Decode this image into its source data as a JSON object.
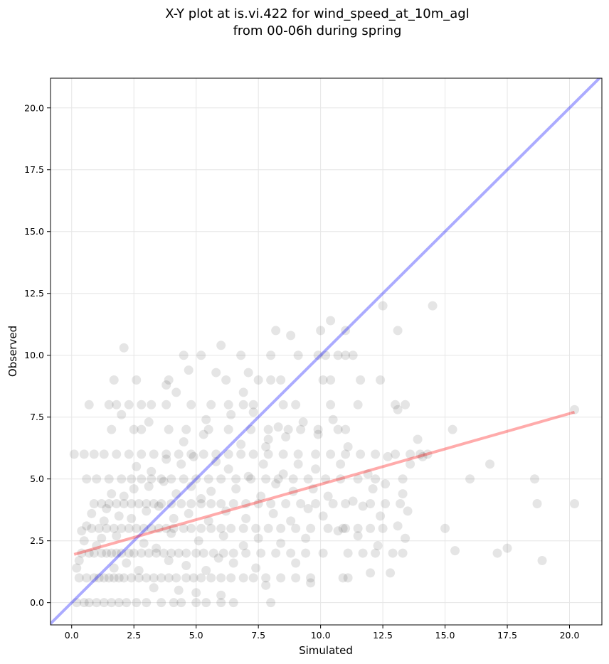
{
  "chart_data": {
    "type": "scatter",
    "title": [
      "X-Y plot at is.vi.422 for wind_speed_at_10m_agl",
      "from 00-06h during spring"
    ],
    "xlabel": "Simulated",
    "ylabel": "Observed",
    "xlim": [
      -0.85,
      21.3
    ],
    "ylim": [
      -0.9,
      21.2
    ],
    "xticks": [
      0.0,
      2.5,
      5.0,
      7.5,
      10.0,
      12.5,
      15.0,
      17.5,
      20.0
    ],
    "xtick_labels": [
      "0.0",
      "2.5",
      "5.0",
      "7.5",
      "10.0",
      "12.5",
      "15.0",
      "17.5",
      "20.0"
    ],
    "yticks": [
      0.0,
      2.5,
      5.0,
      7.5,
      10.0,
      12.5,
      15.0,
      17.5,
      20.0
    ],
    "ytick_labels": [
      "0.0",
      "2.5",
      "5.0",
      "7.5",
      "10.0",
      "12.5",
      "15.0",
      "17.5",
      "20.0"
    ],
    "grid": true,
    "colors": {
      "points": "#000000",
      "identity_line": "#0000ff",
      "fit_line": "#ff0000",
      "grid": "#e6e6e6"
    },
    "identity_line": {
      "from": [
        -0.85,
        -0.85
      ],
      "to": [
        21.3,
        21.3
      ]
    },
    "fit_line": {
      "from": [
        0.1,
        1.95
      ],
      "to": [
        20.2,
        7.7
      ]
    },
    "points": [
      [
        0.2,
        0
      ],
      [
        0.5,
        0
      ],
      [
        0.7,
        0
      ],
      [
        1.0,
        0
      ],
      [
        1.3,
        0
      ],
      [
        1.6,
        0
      ],
      [
        1.9,
        0
      ],
      [
        2.2,
        0
      ],
      [
        2.6,
        0
      ],
      [
        3.0,
        0
      ],
      [
        3.6,
        0
      ],
      [
        4.1,
        0
      ],
      [
        4.4,
        0
      ],
      [
        5.0,
        0
      ],
      [
        5.4,
        0
      ],
      [
        6.0,
        0
      ],
      [
        6.5,
        0
      ],
      [
        8.0,
        0
      ],
      [
        0.3,
        1
      ],
      [
        0.6,
        1
      ],
      [
        0.9,
        1
      ],
      [
        1.1,
        1
      ],
      [
        1.3,
        1
      ],
      [
        1.5,
        1
      ],
      [
        1.7,
        1
      ],
      [
        1.9,
        1
      ],
      [
        2.1,
        1
      ],
      [
        2.4,
        1
      ],
      [
        2.7,
        1
      ],
      [
        3.0,
        1
      ],
      [
        3.3,
        1
      ],
      [
        3.6,
        1
      ],
      [
        3.9,
        1
      ],
      [
        4.2,
        1
      ],
      [
        4.6,
        1
      ],
      [
        4.9,
        1
      ],
      [
        5.2,
        1
      ],
      [
        5.6,
        1
      ],
      [
        6.0,
        1
      ],
      [
        6.4,
        1
      ],
      [
        6.9,
        1
      ],
      [
        7.3,
        1
      ],
      [
        7.8,
        1
      ],
      [
        8.4,
        1
      ],
      [
        9.0,
        1
      ],
      [
        9.6,
        1
      ],
      [
        10.9,
        1
      ],
      [
        11.1,
        1
      ],
      [
        0.4,
        2
      ],
      [
        0.7,
        2
      ],
      [
        0.9,
        2
      ],
      [
        1.2,
        2
      ],
      [
        1.4,
        2
      ],
      [
        1.6,
        2
      ],
      [
        1.8,
        2
      ],
      [
        2.0,
        2
      ],
      [
        2.3,
        2
      ],
      [
        2.5,
        2
      ],
      [
        2.8,
        2
      ],
      [
        3.1,
        2
      ],
      [
        3.4,
        2
      ],
      [
        3.7,
        2
      ],
      [
        4.0,
        2
      ],
      [
        4.3,
        2
      ],
      [
        4.6,
        2
      ],
      [
        5.0,
        2
      ],
      [
        5.3,
        2
      ],
      [
        5.7,
        2
      ],
      [
        6.1,
        2
      ],
      [
        6.5,
        2
      ],
      [
        7.0,
        2
      ],
      [
        7.6,
        2
      ],
      [
        8.2,
        2
      ],
      [
        8.8,
        2
      ],
      [
        9.4,
        2
      ],
      [
        10.1,
        2
      ],
      [
        11.1,
        2
      ],
      [
        11.7,
        2
      ],
      [
        12.2,
        2
      ],
      [
        12.9,
        2
      ],
      [
        13.3,
        2
      ],
      [
        17.1,
        2
      ],
      [
        0.8,
        3
      ],
      [
        1.1,
        3
      ],
      [
        1.4,
        3
      ],
      [
        1.7,
        3
      ],
      [
        2.0,
        3
      ],
      [
        2.3,
        3
      ],
      [
        2.6,
        3
      ],
      [
        2.9,
        3
      ],
      [
        3.2,
        3
      ],
      [
        3.5,
        3
      ],
      [
        3.8,
        3
      ],
      [
        4.1,
        3
      ],
      [
        4.5,
        3
      ],
      [
        4.8,
        3
      ],
      [
        5.2,
        3
      ],
      [
        5.6,
        3
      ],
      [
        6.0,
        3
      ],
      [
        6.4,
        3
      ],
      [
        6.9,
        3
      ],
      [
        7.4,
        3
      ],
      [
        7.9,
        3
      ],
      [
        8.4,
        3
      ],
      [
        9.0,
        3
      ],
      [
        9.6,
        3
      ],
      [
        10.3,
        3
      ],
      [
        11.0,
        3
      ],
      [
        11.5,
        3
      ],
      [
        12.0,
        3
      ],
      [
        12.5,
        3
      ],
      [
        15.0,
        3
      ],
      [
        0.9,
        4
      ],
      [
        1.2,
        4
      ],
      [
        1.5,
        4
      ],
      [
        1.8,
        4
      ],
      [
        2.1,
        4
      ],
      [
        2.4,
        4
      ],
      [
        2.7,
        4
      ],
      [
        3.0,
        4
      ],
      [
        3.3,
        4
      ],
      [
        3.6,
        4
      ],
      [
        4.0,
        4
      ],
      [
        4.4,
        4
      ],
      [
        4.8,
        4
      ],
      [
        5.2,
        4
      ],
      [
        5.6,
        4
      ],
      [
        6.0,
        4
      ],
      [
        6.5,
        4
      ],
      [
        7.0,
        4
      ],
      [
        7.5,
        4
      ],
      [
        8.0,
        4
      ],
      [
        8.6,
        4
      ],
      [
        9.2,
        4
      ],
      [
        9.8,
        4
      ],
      [
        10.5,
        4
      ],
      [
        11.0,
        4
      ],
      [
        12.0,
        4
      ],
      [
        12.6,
        4
      ],
      [
        13.2,
        4
      ],
      [
        18.7,
        4
      ],
      [
        20.2,
        4
      ],
      [
        0.6,
        5
      ],
      [
        1.0,
        5
      ],
      [
        1.5,
        5
      ],
      [
        2.0,
        5
      ],
      [
        2.4,
        5
      ],
      [
        2.8,
        5
      ],
      [
        3.2,
        5
      ],
      [
        3.6,
        5
      ],
      [
        4.0,
        5
      ],
      [
        4.5,
        5
      ],
      [
        5.0,
        5
      ],
      [
        5.5,
        5
      ],
      [
        6.0,
        5
      ],
      [
        6.6,
        5
      ],
      [
        7.2,
        5
      ],
      [
        7.8,
        5
      ],
      [
        8.3,
        5
      ],
      [
        8.9,
        5
      ],
      [
        9.5,
        5
      ],
      [
        10.2,
        5
      ],
      [
        10.8,
        5
      ],
      [
        11.5,
        5
      ],
      [
        12.2,
        5
      ],
      [
        13.3,
        5
      ],
      [
        16.0,
        5
      ],
      [
        18.6,
        5
      ],
      [
        0.1,
        6
      ],
      [
        0.5,
        6
      ],
      [
        0.9,
        6
      ],
      [
        1.3,
        6
      ],
      [
        1.8,
        6
      ],
      [
        2.3,
        6
      ],
      [
        2.8,
        6
      ],
      [
        3.3,
        6
      ],
      [
        3.8,
        6
      ],
      [
        4.3,
        6
      ],
      [
        4.8,
        6
      ],
      [
        5.3,
        6
      ],
      [
        5.8,
        6
      ],
      [
        6.3,
        6
      ],
      [
        6.8,
        6
      ],
      [
        7.3,
        6
      ],
      [
        7.9,
        6
      ],
      [
        8.5,
        6
      ],
      [
        9.1,
        6
      ],
      [
        9.8,
        6
      ],
      [
        10.4,
        6
      ],
      [
        11.0,
        6
      ],
      [
        11.6,
        6
      ],
      [
        12.2,
        6
      ],
      [
        13.0,
        6
      ],
      [
        13.6,
        6
      ],
      [
        14.3,
        6
      ],
      [
        1.6,
        7
      ],
      [
        2.5,
        7
      ],
      [
        2.8,
        7
      ],
      [
        3.9,
        7
      ],
      [
        4.6,
        7
      ],
      [
        5.5,
        7
      ],
      [
        6.3,
        7
      ],
      [
        7.2,
        7
      ],
      [
        7.9,
        7
      ],
      [
        8.7,
        7
      ],
      [
        9.2,
        7
      ],
      [
        9.9,
        7
      ],
      [
        10.7,
        7
      ],
      [
        11.0,
        7
      ],
      [
        15.3,
        7
      ],
      [
        0.7,
        8
      ],
      [
        1.5,
        8
      ],
      [
        1.8,
        8
      ],
      [
        2.3,
        8
      ],
      [
        2.8,
        8
      ],
      [
        3.2,
        8
      ],
      [
        3.8,
        8
      ],
      [
        4.8,
        8
      ],
      [
        5.6,
        8
      ],
      [
        6.3,
        8
      ],
      [
        6.9,
        8
      ],
      [
        7.3,
        8
      ],
      [
        8.5,
        8
      ],
      [
        9.0,
        8
      ],
      [
        10.4,
        8
      ],
      [
        11.5,
        8
      ],
      [
        13.0,
        8
      ],
      [
        13.4,
        8
      ],
      [
        1.7,
        9
      ],
      [
        2.6,
        9
      ],
      [
        3.9,
        9
      ],
      [
        6.2,
        9
      ],
      [
        7.5,
        9
      ],
      [
        8.0,
        9
      ],
      [
        8.4,
        9
      ],
      [
        10.1,
        9
      ],
      [
        10.4,
        9
      ],
      [
        11.6,
        9
      ],
      [
        12.4,
        9
      ],
      [
        4.5,
        10
      ],
      [
        5.2,
        10
      ],
      [
        6.8,
        10
      ],
      [
        8.0,
        10
      ],
      [
        9.1,
        10
      ],
      [
        9.9,
        10
      ],
      [
        10.2,
        10
      ],
      [
        10.7,
        10
      ],
      [
        11.0,
        10
      ],
      [
        11.3,
        10
      ],
      [
        8.2,
        11
      ],
      [
        8.8,
        10.8
      ],
      [
        10.0,
        11
      ],
      [
        10.4,
        11.4
      ],
      [
        11.0,
        11
      ],
      [
        13.1,
        11
      ],
      [
        12.5,
        12
      ],
      [
        14.5,
        12
      ],
      [
        2.1,
        10.3
      ],
      [
        6.0,
        10.4
      ],
      [
        4.7,
        9.4
      ],
      [
        7.1,
        9.3
      ],
      [
        5.8,
        9.3
      ],
      [
        3.8,
        8.8
      ],
      [
        4.2,
        8.5
      ],
      [
        6.9,
        8.5
      ],
      [
        2.0,
        7.6
      ],
      [
        5.4,
        7.4
      ],
      [
        3.1,
        7.3
      ],
      [
        7.8,
        6.3
      ],
      [
        13.1,
        7.8
      ],
      [
        13.9,
        6.6
      ],
      [
        14.0,
        6.0
      ],
      [
        16.8,
        5.6
      ],
      [
        0.2,
        1.4
      ],
      [
        0.3,
        1.7
      ],
      [
        0.5,
        2.5
      ],
      [
        0.4,
        2.9
      ],
      [
        0.6,
        3.1
      ],
      [
        0.8,
        3.6
      ],
      [
        1.0,
        2.3
      ],
      [
        1.2,
        2.6
      ],
      [
        1.3,
        3.3
      ],
      [
        1.4,
        3.8
      ],
      [
        1.6,
        4.4
      ],
      [
        1.7,
        1.4
      ],
      [
        1.8,
        2.7
      ],
      [
        1.9,
        3.5
      ],
      [
        2.1,
        4.3
      ],
      [
        2.2,
        1.6
      ],
      [
        2.4,
        3.4
      ],
      [
        2.5,
        4.6
      ],
      [
        2.6,
        5.5
      ],
      [
        2.7,
        1.3
      ],
      [
        2.9,
        2.4
      ],
      [
        3.0,
        3.7
      ],
      [
        3.1,
        4.7
      ],
      [
        3.2,
        5.3
      ],
      [
        3.3,
        0.6
      ],
      [
        3.4,
        2.2
      ],
      [
        3.5,
        3.9
      ],
      [
        3.7,
        4.9
      ],
      [
        3.8,
        5.8
      ],
      [
        3.9,
        1.7
      ],
      [
        4.0,
        2.8
      ],
      [
        4.1,
        3.4
      ],
      [
        4.2,
        4.4
      ],
      [
        4.3,
        0.5
      ],
      [
        4.4,
        5.6
      ],
      [
        4.5,
        6.5
      ],
      [
        4.6,
        1.5
      ],
      [
        4.7,
        3.6
      ],
      [
        4.8,
        4.7
      ],
      [
        4.9,
        5.9
      ],
      [
        5.0,
        0.4
      ],
      [
        5.1,
        2.5
      ],
      [
        5.2,
        4.2
      ],
      [
        5.3,
        6.8
      ],
      [
        5.4,
        1.3
      ],
      [
        5.5,
        3.3
      ],
      [
        5.6,
        4.5
      ],
      [
        5.8,
        5.7
      ],
      [
        5.9,
        1.8
      ],
      [
        6.0,
        0.3
      ],
      [
        6.1,
        2.7
      ],
      [
        6.2,
        3.7
      ],
      [
        6.3,
        5.4
      ],
      [
        6.4,
        7.6
      ],
      [
        6.5,
        1.6
      ],
      [
        6.6,
        4.6
      ],
      [
        6.8,
        6.4
      ],
      [
        6.9,
        2.3
      ],
      [
        7.0,
        3.4
      ],
      [
        7.1,
        5.1
      ],
      [
        7.3,
        7.7
      ],
      [
        7.4,
        1.4
      ],
      [
        7.5,
        2.6
      ],
      [
        7.6,
        4.3
      ],
      [
        7.7,
        5.6
      ],
      [
        7.8,
        0.7
      ],
      [
        7.9,
        6.6
      ],
      [
        8.1,
        3.6
      ],
      [
        8.2,
        4.8
      ],
      [
        8.3,
        7.1
      ],
      [
        8.4,
        2.4
      ],
      [
        8.5,
        5.2
      ],
      [
        8.6,
        6.7
      ],
      [
        8.8,
        3.3
      ],
      [
        8.9,
        4.5
      ],
      [
        9.0,
        1.6
      ],
      [
        9.1,
        5.6
      ],
      [
        9.3,
        7.3
      ],
      [
        9.4,
        2.6
      ],
      [
        9.5,
        3.8
      ],
      [
        9.6,
        0.8
      ],
      [
        9.7,
        4.6
      ],
      [
        9.8,
        5.4
      ],
      [
        9.9,
        6.8
      ],
      [
        10.1,
        3.5
      ],
      [
        10.3,
        4.3
      ],
      [
        10.5,
        7.4
      ],
      [
        10.7,
        2.9
      ],
      [
        10.8,
        5.6
      ],
      [
        10.9,
        3.0
      ],
      [
        11.1,
        6.3
      ],
      [
        11.3,
        4.1
      ],
      [
        11.5,
        2.7
      ],
      [
        11.7,
        3.9
      ],
      [
        11.9,
        5.2
      ],
      [
        12.0,
        1.2
      ],
      [
        12.1,
        4.6
      ],
      [
        12.3,
        2.3
      ],
      [
        12.4,
        3.5
      ],
      [
        12.6,
        4.8
      ],
      [
        12.7,
        5.9
      ],
      [
        12.8,
        1.2
      ],
      [
        13.1,
        3.1
      ],
      [
        13.3,
        4.4
      ],
      [
        13.4,
        2.6
      ],
      [
        13.5,
        3.7
      ],
      [
        13.6,
        5.6
      ],
      [
        14.1,
        5.9
      ],
      [
        15.4,
        2.1
      ],
      [
        17.5,
        2.2
      ],
      [
        18.9,
        1.7
      ],
      [
        20.2,
        7.8
      ]
    ]
  }
}
